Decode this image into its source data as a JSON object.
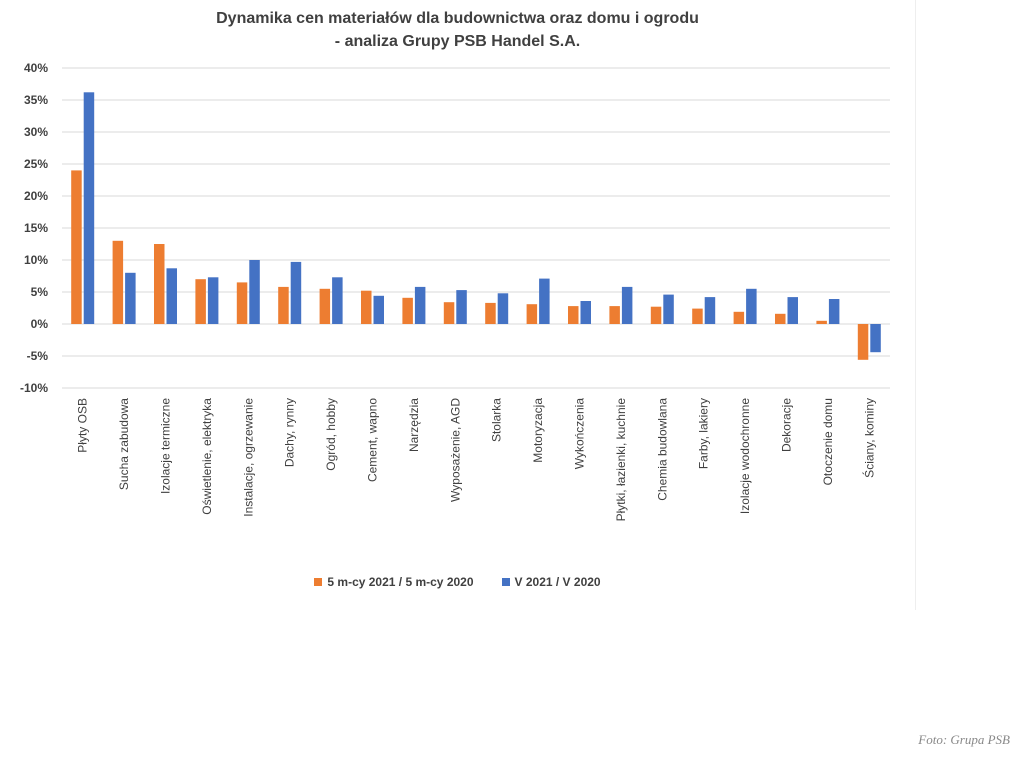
{
  "chart_data": {
    "type": "bar",
    "title": "Dynamika cen materiałów dla budownictwa oraz domu i ogrodu",
    "subtitle": "- analiza Grupy PSB Handel S.A.",
    "xlabel": "",
    "ylabel": "",
    "ylim": [
      -10,
      40
    ],
    "yticks": [
      "40%",
      "35%",
      "30%",
      "25%",
      "20%",
      "15%",
      "10%",
      "5%",
      "0%",
      "-5%",
      "-10%"
    ],
    "ytick_values": [
      40,
      35,
      30,
      25,
      20,
      15,
      10,
      5,
      0,
      -5,
      -10
    ],
    "grid": true,
    "legend_position": "bottom",
    "categories": [
      "Płyty OSB",
      "Sucha zabudowa",
      "Izolacje termiczne",
      "Oświetlenie, elektryka",
      "Instalacje, ogrzewanie",
      "Dachy, rynny",
      "Ogród, hobby",
      "Cement, wapno",
      "Narzędzia",
      "Wyposażenie, AGD",
      "Stolarka",
      "Motoryzacja",
      "Wykończenia",
      "Płytki, łazienki, kuchnie",
      "Chemia budowlana",
      "Farby, lakiery",
      "Izolacje wodochronne",
      "Dekoracje",
      "Otoczenie domu",
      "Ściany, kominy"
    ],
    "series": [
      {
        "name": "5 m-cy 2021 / 5 m-cy 2020",
        "color": "#ED7D31",
        "values": [
          24.0,
          13.0,
          12.5,
          7.0,
          6.5,
          5.8,
          5.5,
          5.2,
          4.1,
          3.4,
          3.3,
          3.1,
          2.8,
          2.8,
          2.7,
          2.4,
          1.9,
          1.6,
          0.5,
          -5.6
        ]
      },
      {
        "name": "V 2021 / V 2020",
        "color": "#4472C4",
        "values": [
          36.2,
          8.0,
          8.7,
          7.3,
          10.0,
          9.7,
          7.3,
          4.4,
          5.8,
          5.3,
          4.8,
          7.1,
          3.6,
          5.8,
          4.6,
          4.2,
          5.5,
          4.2,
          3.9,
          -4.4
        ]
      }
    ]
  },
  "caption": "Foto: Grupa PSB"
}
